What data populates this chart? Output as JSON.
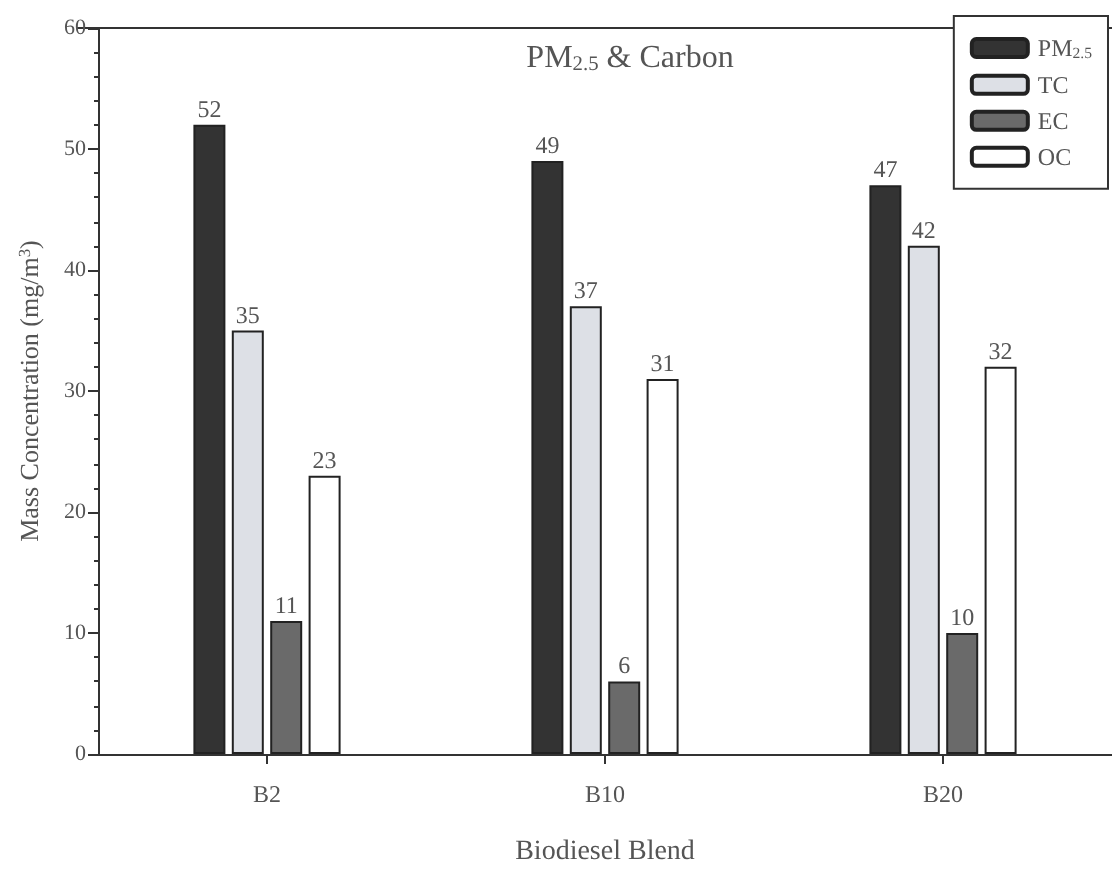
{
  "chart_data": {
    "type": "bar",
    "title": "PM$_{2.5}$ & Carbon",
    "xlabel": "Biodiesel Blend",
    "ylabel": "Mass Concentration (mg/m$^{3}$)",
    "categories": [
      "B2",
      "B10",
      "B20"
    ],
    "series": [
      {
        "name": "PM$_{2.5}$",
        "color": "#333333",
        "values": [
          52,
          49,
          47
        ]
      },
      {
        "name": "TC",
        "color": "#dde0e6",
        "values": [
          35,
          37,
          42
        ]
      },
      {
        "name": "EC",
        "color": "#6a6a6a",
        "values": [
          11,
          6,
          10
        ]
      },
      {
        "name": "OC",
        "color": "#ffffff",
        "values": [
          23,
          31,
          32
        ]
      }
    ],
    "ylim": [
      0,
      60
    ],
    "yticks": [
      0,
      10,
      20,
      30,
      40,
      50,
      60
    ],
    "data_labels": true,
    "legend": "top right",
    "grid": false
  }
}
